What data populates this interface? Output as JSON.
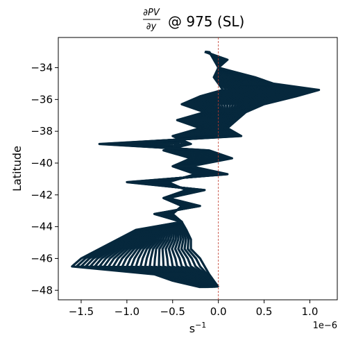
{
  "chart_data": {
    "type": "line",
    "title": {
      "numerator": "∂PV",
      "denominator": "∂y",
      "suffix": "@ 975 (SL)"
    },
    "xlabel": {
      "base": "s",
      "exponent": "−1"
    },
    "ylabel": "Latitude",
    "x_offset_label": "1e−6",
    "xlim": [
      -1.75e-06,
      1.3e-06
    ],
    "ylim": [
      -48.6,
      -32.1
    ],
    "x_ticks": [
      -1.5e-06,
      -1e-06,
      -5e-07,
      0.0,
      5e-07,
      1e-06
    ],
    "x_tick_labels": [
      "−1.5",
      "−1.0",
      "−0.5",
      "0.0",
      "0.5",
      "1.0"
    ],
    "y_ticks": [
      -34,
      -36,
      -38,
      -40,
      -42,
      -44,
      -46,
      -48
    ],
    "y_tick_labels": [
      "−34",
      "−36",
      "−38",
      "−40",
      "−42",
      "−44",
      "−46",
      "−48"
    ],
    "grid": false,
    "reference_line": {
      "x": 0,
      "color": "#c0392b",
      "style": "dashed"
    },
    "series_color": "#06283d",
    "series_count": 30,
    "base_profile": {
      "latitude": [
        -33.0,
        -33.5,
        -34.0,
        -34.6,
        -35.0,
        -35.4,
        -35.8,
        -36.3,
        -36.8,
        -37.3,
        -37.8,
        -38.3,
        -38.8,
        -39.2,
        -39.7,
        -40.2,
        -40.7,
        -41.2,
        -41.7,
        -42.2,
        -42.7,
        -43.2,
        -43.7,
        -44.2,
        -44.8,
        -45.4,
        -46.0,
        -46.5,
        -47.0,
        -47.4,
        -47.8
      ],
      "dpv_dy_start": [
        -1e-07,
        -5e-08,
        0.0,
        -5e-08,
        0.0,
        5e-08,
        -2e-07,
        -4e-07,
        -1.5e-07,
        -4.5e-07,
        -2e-07,
        -5e-07,
        -3e-07,
        -6e-07,
        -3e-07,
        -5e-07,
        -2.5e-07,
        -5.5e-07,
        -3.5e-07,
        -6e-07,
        -4e-07,
        -5e-07,
        -4e-07,
        -3.5e-07,
        -3e-07,
        -3e-07,
        -2e-07,
        -1.5e-07,
        -1e-07,
        -5e-08,
        0.0
      ],
      "dpv_dy_end": [
        -1.5e-07,
        1e-07,
        0.0,
        4e-07,
        6e-07,
        1.1e-06,
        8.5e-07,
        5e-07,
        3e-07,
        2e-07,
        1e-07,
        2.5e-07,
        -1.3e-06,
        -1e-07,
        1.5e-07,
        -3e-07,
        1e-07,
        -1e-06,
        -1.5e-07,
        -5.5e-07,
        -2e-07,
        -7e-07,
        -4e-07,
        -9e-07,
        -1.1e-06,
        -1.3e-06,
        -1.5e-06,
        -1.6e-06,
        -7e-07,
        -5e-07,
        -2e-07
      ]
    }
  }
}
